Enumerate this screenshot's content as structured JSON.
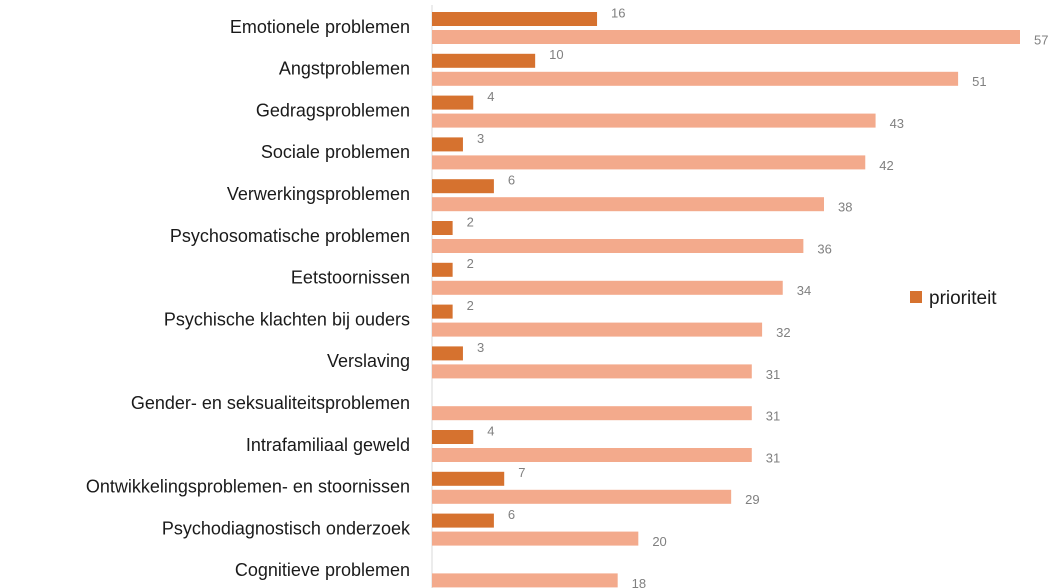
{
  "chart_data": {
    "type": "bar",
    "orientation": "horizontal",
    "categories": [
      "Emotionele problemen",
      "Angstproblemen",
      "Gedragsproblemen",
      "Sociale problemen",
      "Verwerkingsproblemen",
      "Psychosomatische problemen",
      "Eetstoornissen",
      "Psychische klachten bij ouders",
      "Verslaving",
      "Gender- en seksualiteitsproblemen",
      "Intrafamiliaal geweld",
      "Ontwikkelingsproblemen- en stoornissen",
      "Psychodiagnostisch onderzoek",
      "Cognitieve problemen"
    ],
    "series": [
      {
        "name": "prioriteit",
        "color": "#d6722f",
        "values": [
          16,
          10,
          4,
          3,
          6,
          2,
          2,
          2,
          3,
          null,
          4,
          7,
          6,
          null
        ]
      },
      {
        "color": "#f3aa8c",
        "values": [
          57,
          51,
          43,
          42,
          38,
          36,
          34,
          32,
          31,
          31,
          31,
          29,
          20,
          18
        ]
      }
    ],
    "legend": "right"
  }
}
